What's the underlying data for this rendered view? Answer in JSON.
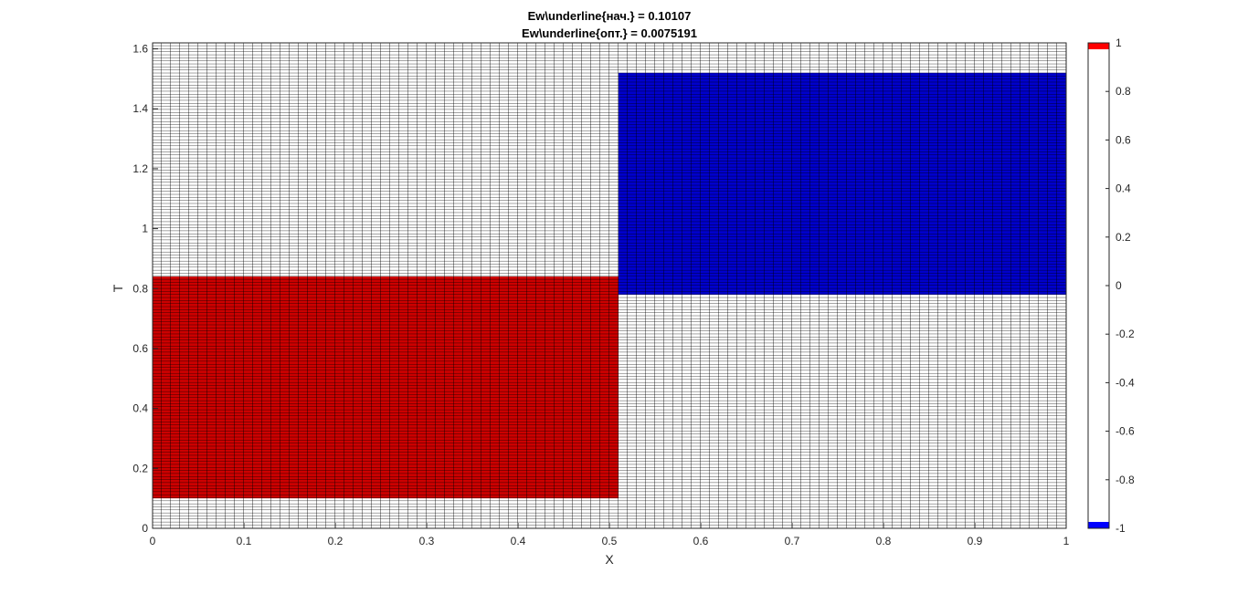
{
  "chart_data": {
    "type": "heatmap",
    "title_lines": [
      "Ew\\underline{нач.} = 0.10107",
      "Ew\\underline{опт.} = 0.0075191"
    ],
    "xlabel": "X",
    "ylabel": "T",
    "xlim": [
      0,
      1
    ],
    "ylim": [
      0,
      1.62
    ],
    "x_ticks": [
      0,
      0.1,
      0.2,
      0.3,
      0.4,
      0.5,
      0.6,
      0.7,
      0.8,
      0.9,
      1
    ],
    "x_tick_labels": [
      "0",
      "0.1",
      "0.2",
      "0.3",
      "0.4",
      "0.5",
      "0.6",
      "0.7",
      "0.8",
      "0.9",
      "1"
    ],
    "y_ticks": [
      0,
      0.2,
      0.4,
      0.6,
      0.8,
      1,
      1.2,
      1.4,
      1.6
    ],
    "y_tick_labels": [
      "0",
      "0.2",
      "0.4",
      "0.6",
      "0.8",
      "1",
      "1.2",
      "1.4",
      "1.6"
    ],
    "grid": {
      "x_cells": 100,
      "t_cells": 160,
      "edge_color": "#000000"
    },
    "regions": [
      {
        "name": "u = 1",
        "x": [
          0,
          0.51
        ],
        "t": [
          0.1,
          0.84
        ],
        "value": 1,
        "color": "#cc0000"
      },
      {
        "name": "u = -1",
        "x": [
          0.51,
          1
        ],
        "t": [
          0.78,
          1.52
        ],
        "value": -1,
        "color": "#0000cc"
      }
    ],
    "background_value": 0,
    "background_color": "#ffffff",
    "colorbar": {
      "range": [
        -1,
        1
      ],
      "ticks": [
        -1,
        -0.8,
        -0.6,
        -0.4,
        -0.2,
        0,
        0.2,
        0.4,
        0.6,
        0.8,
        1
      ],
      "tick_labels": [
        "-1",
        "-0.8",
        "-0.6",
        "-0.4",
        "-0.2",
        "0",
        "0.2",
        "0.4",
        "0.6",
        "0.8",
        "1"
      ],
      "top_color": "#ff0000",
      "bottom_color": "#0000ff",
      "middle_color": "#ffffff"
    },
    "legend": "none"
  }
}
